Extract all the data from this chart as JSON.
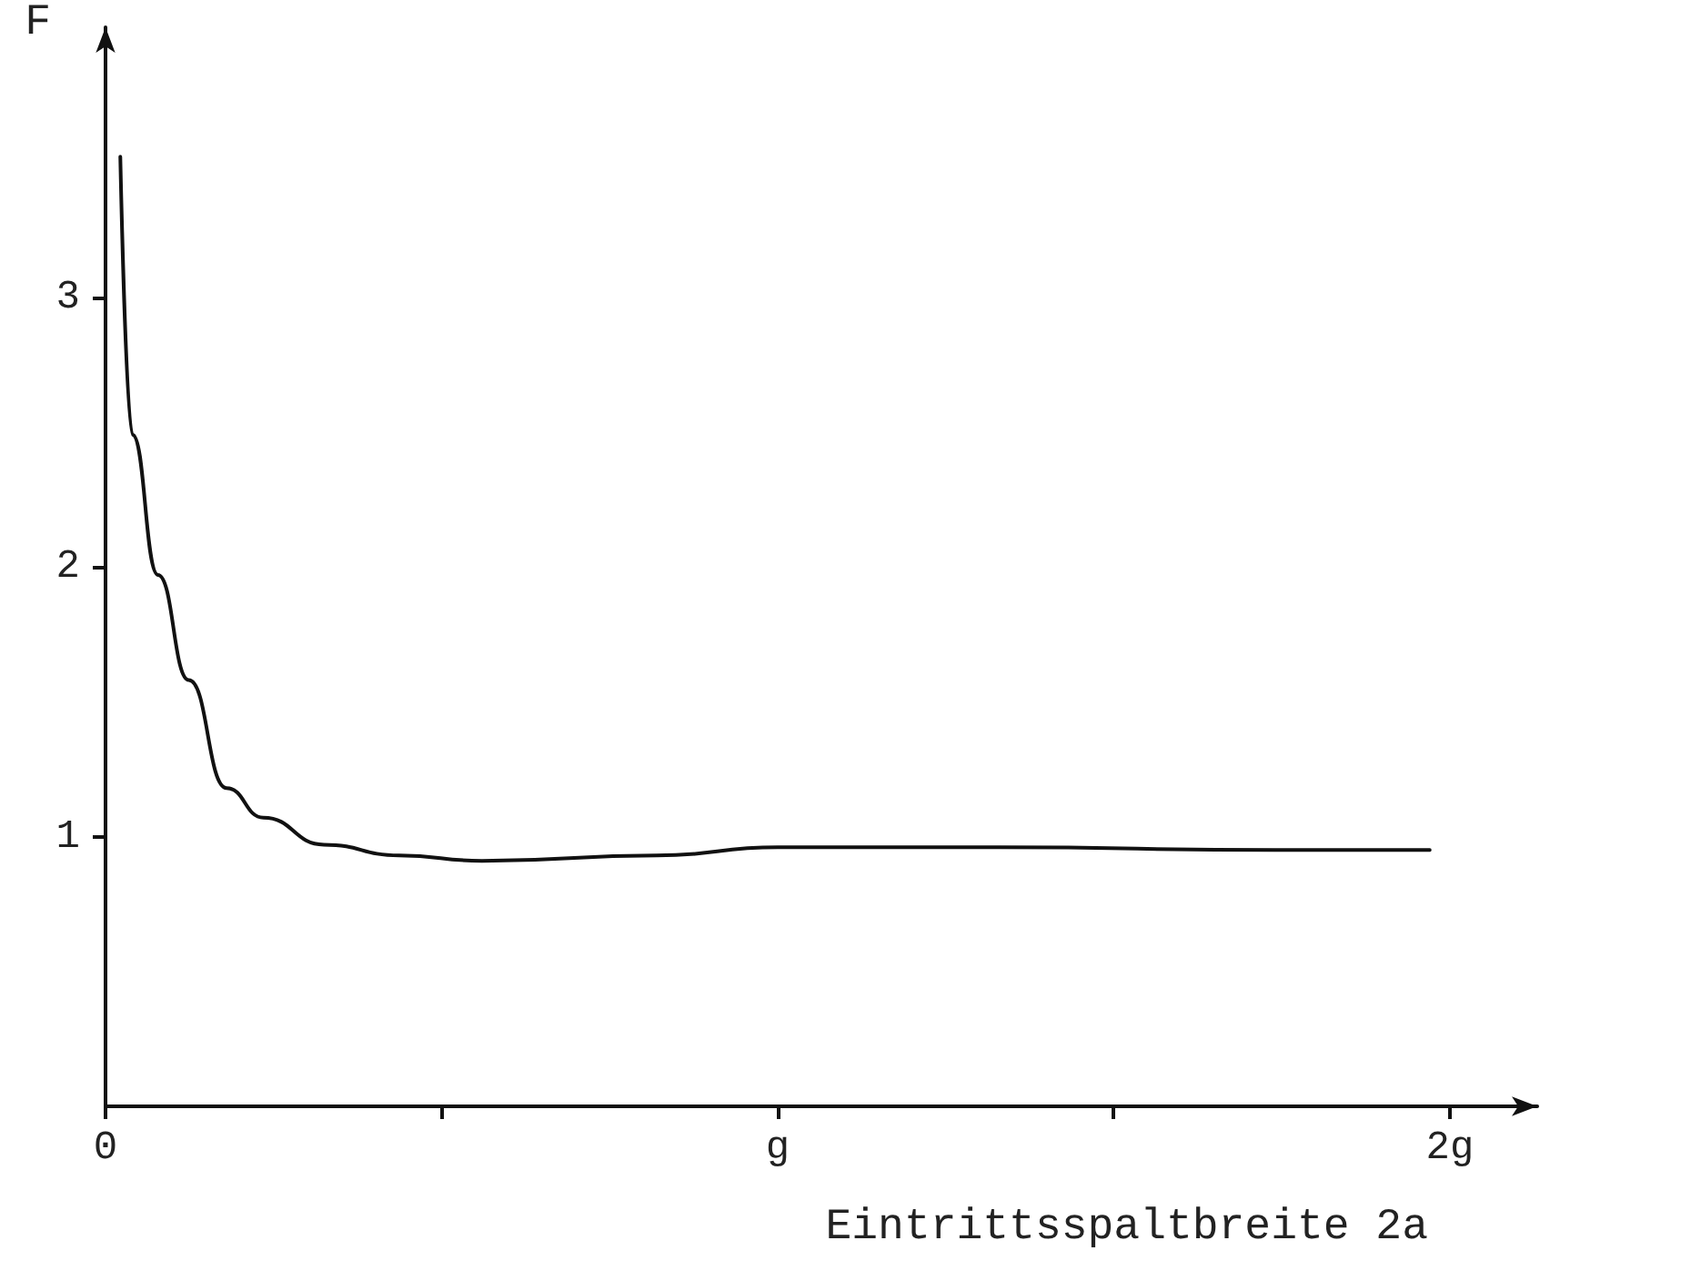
{
  "chart_data": {
    "type": "line",
    "xlabel": "Eintrittsspaltbreite 2a",
    "ylabel": "F",
    "color": "#111111",
    "x": [
      0.022,
      0.04,
      0.078,
      0.124,
      0.18,
      0.235,
      0.325,
      0.437,
      0.56,
      0.82,
      1.0,
      1.33,
      1.74,
      1.97
    ],
    "values": [
      3.52,
      2.49,
      1.97,
      1.58,
      1.18,
      1.07,
      0.97,
      0.93,
      0.91,
      0.93,
      0.96,
      0.96,
      0.95,
      0.95
    ],
    "xlim": [
      0,
      2.13
    ],
    "ylim": [
      0,
      4
    ],
    "xticks": [
      0,
      {
        "value": 0.5,
        "label": null
      },
      {
        "value": 1,
        "label": "g"
      },
      {
        "value": 1.5,
        "label": null
      },
      {
        "value": 2,
        "label": "2g"
      }
    ],
    "yticks": [
      1,
      2,
      3
    ],
    "marker": "none",
    "line_style": "solid"
  }
}
